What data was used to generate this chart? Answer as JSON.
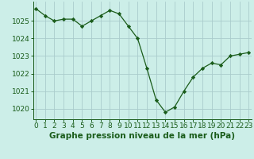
{
  "x": [
    0,
    1,
    2,
    3,
    4,
    5,
    6,
    7,
    8,
    9,
    10,
    11,
    12,
    13,
    14,
    15,
    16,
    17,
    18,
    19,
    20,
    21,
    22,
    23
  ],
  "y": [
    1025.7,
    1025.3,
    1025.0,
    1025.1,
    1025.1,
    1024.7,
    1025.0,
    1025.3,
    1025.6,
    1025.4,
    1024.7,
    1024.0,
    1022.3,
    1020.5,
    1019.8,
    1020.1,
    1021.0,
    1021.8,
    1022.3,
    1022.6,
    1022.5,
    1023.0,
    1023.1,
    1023.2
  ],
  "line_color": "#1a5c1a",
  "marker": "D",
  "marker_size": 2.2,
  "bg_color": "#cceee8",
  "grid_color": "#aacccc",
  "xlabel": "Graphe pression niveau de la mer (hPa)",
  "xlabel_fontsize": 7.5,
  "tick_fontsize": 6.5,
  "ylim": [
    1019.4,
    1026.1
  ],
  "yticks": [
    1020,
    1021,
    1022,
    1023,
    1024,
    1025
  ],
  "xticks": [
    0,
    1,
    2,
    3,
    4,
    5,
    6,
    7,
    8,
    9,
    10,
    11,
    12,
    13,
    14,
    15,
    16,
    17,
    18,
    19,
    20,
    21,
    22,
    23
  ],
  "xlim": [
    -0.3,
    23.3
  ]
}
